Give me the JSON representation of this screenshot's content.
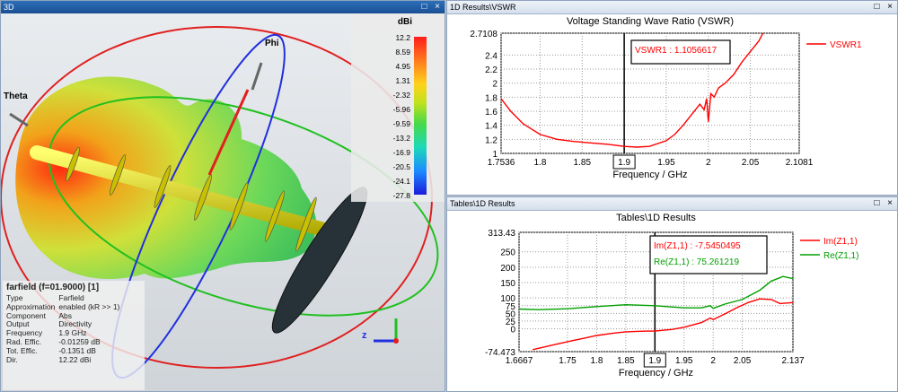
{
  "view3d": {
    "title": "3D",
    "axis_theta": "Theta",
    "axis_phi": "Phi",
    "axis_z": "z",
    "colorbar": {
      "unit": "dBi",
      "ticks": [
        "12.2",
        "8.59",
        "4.95",
        "1.31",
        "-2.32",
        "-5.96",
        "-9.59",
        "-13.2",
        "-16.9",
        "-20.5",
        "-24.1",
        "-27.8"
      ]
    },
    "info": {
      "header": "farfield (f=01.9000) [1]",
      "rows": [
        {
          "k": "Type",
          "v": "Farfield"
        },
        {
          "k": "Approximation",
          "v": "enabled (kR >> 1)"
        },
        {
          "k": "Component",
          "v": "Abs"
        },
        {
          "k": "Output",
          "v": "Directivity"
        },
        {
          "k": "Frequency",
          "v": "1.9 GHz"
        },
        {
          "k": "Rad. Effic.",
          "v": "-0.01259 dB"
        },
        {
          "k": "Tot. Effic.",
          "v": "-0.1351 dB"
        },
        {
          "k": "Dir.",
          "v": "12.22 dBi"
        }
      ]
    }
  },
  "vswr_panel": {
    "title": "1D Results\\VSWR"
  },
  "tables_panel": {
    "title": "Tables\\1D Results"
  },
  "window_buttons": "□ ×",
  "chart_data": [
    {
      "type": "line",
      "title": "Voltage Standing Wave Ratio (VSWR)",
      "xlabel": "Frequency / GHz",
      "ylabel": "",
      "xlim": [
        1.7536,
        2.1081
      ],
      "ylim": [
        1,
        2.7108
      ],
      "xticks": [
        "1.7536",
        "1.8",
        "1.85",
        "1.9",
        "1.95",
        "2",
        "2.05",
        "2.1081"
      ],
      "xtick_values": [
        1.7536,
        1.8,
        1.85,
        1.9,
        1.95,
        2,
        2.05,
        2.1081
      ],
      "yticks": [
        "1",
        "1.2",
        "1.4",
        "1.6",
        "1.8",
        "2",
        "2.2",
        "2.4",
        "2.7108"
      ],
      "ytick_values": [
        1,
        1.2,
        1.4,
        1.6,
        1.8,
        2,
        2.2,
        2.4,
        2.7108
      ],
      "marker_x": 1.9,
      "marker_label": "1.9",
      "annotations": [
        "VSWR1 : 1.1056617"
      ],
      "series": [
        {
          "name": "VSWR1",
          "color": "#ff0000",
          "x": [
            1.7536,
            1.765,
            1.78,
            1.8,
            1.82,
            1.84,
            1.86,
            1.88,
            1.9,
            1.915,
            1.93,
            1.95,
            1.96,
            1.97,
            1.98,
            1.99,
            1.995,
            1.998,
            2.0,
            2.003,
            2.007,
            2.012,
            2.02,
            2.03,
            2.04,
            2.05,
            2.06,
            2.065
          ],
          "y": [
            1.78,
            1.6,
            1.42,
            1.27,
            1.2,
            1.17,
            1.15,
            1.13,
            1.1,
            1.09,
            1.1,
            1.18,
            1.27,
            1.4,
            1.55,
            1.7,
            1.62,
            1.78,
            1.45,
            1.85,
            1.8,
            1.93,
            2.0,
            2.12,
            2.3,
            2.45,
            2.6,
            2.71
          ]
        }
      ]
    },
    {
      "type": "line",
      "title": "Tables\\1D Results",
      "xlabel": "Frequency / GHz",
      "ylabel": "",
      "xlim": [
        1.6667,
        2.137
      ],
      "ylim": [
        -74.473,
        313.43
      ],
      "xticks": [
        "1.6667",
        "1.75",
        "1.8",
        "1.85",
        "1.9",
        "1.95",
        "2",
        "2.05",
        "2.137"
      ],
      "xtick_values": [
        1.6667,
        1.75,
        1.8,
        1.85,
        1.9,
        1.95,
        2,
        2.05,
        2.137
      ],
      "yticks": [
        "-74.473",
        "0",
        "25",
        "50",
        "75",
        "100",
        "150",
        "200",
        "250",
        "313.43"
      ],
      "ytick_values": [
        -74.473,
        0,
        25,
        50,
        75,
        100,
        150,
        200,
        250,
        313.43
      ],
      "marker_x": 1.9,
      "marker_label": "1.9",
      "annotations": [
        "Im(Z1,1) : -7.5450495",
        "Re(Z1,1) : 75.261219"
      ],
      "series": [
        {
          "name": "Im(Z1,1)",
          "color": "#ff0000",
          "x": [
            1.69,
            1.72,
            1.75,
            1.78,
            1.8,
            1.83,
            1.85,
            1.88,
            1.9,
            1.93,
            1.95,
            1.98,
            1.995,
            2.0,
            2.02,
            2.04,
            2.06,
            2.08,
            2.1,
            2.115,
            2.137
          ],
          "y": [
            -68,
            -55,
            -42,
            -30,
            -22,
            -14,
            -10,
            -8,
            -7.5,
            -2,
            5,
            20,
            35,
            30,
            48,
            68,
            85,
            97,
            95,
            82,
            85
          ]
        },
        {
          "name": "Re(Z1,1)",
          "color": "#00a000",
          "x": [
            1.6667,
            1.7,
            1.75,
            1.8,
            1.85,
            1.9,
            1.95,
            1.98,
            1.995,
            2.0,
            2.02,
            2.05,
            2.08,
            2.1,
            2.12,
            2.137
          ],
          "y": [
            64,
            62,
            65,
            72,
            78,
            75,
            68,
            68,
            75,
            66,
            80,
            95,
            125,
            155,
            170,
            163
          ]
        }
      ]
    }
  ]
}
